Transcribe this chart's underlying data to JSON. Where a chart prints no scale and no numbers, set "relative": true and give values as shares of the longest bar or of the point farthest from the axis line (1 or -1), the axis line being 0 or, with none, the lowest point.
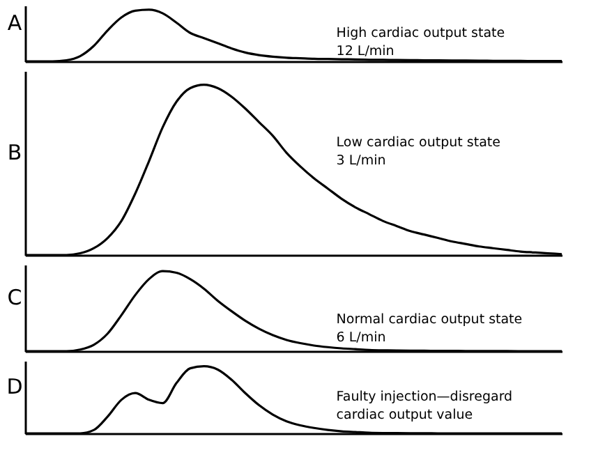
{
  "chart_data": [
    {
      "type": "line",
      "relative": true,
      "tick_labels": false,
      "color": "#000000",
      "ylabel": "A",
      "annotations": [
        "High cardiac output state",
        "12 L/min"
      ],
      "categories": [
        null,
        null,
        null,
        null,
        null,
        null,
        null,
        null,
        null,
        null,
        null,
        null,
        null,
        null,
        null,
        null,
        null,
        null,
        null,
        null,
        null,
        null,
        null,
        null,
        null,
        null,
        null,
        null,
        null,
        null,
        null,
        null,
        null,
        null,
        null,
        null,
        null,
        null,
        null,
        null
      ],
      "values": [
        0,
        0,
        0,
        0.02,
        0.1,
        0.3,
        0.6,
        0.85,
        0.98,
        1.0,
        0.93,
        0.75,
        0.55,
        0.45,
        0.35,
        0.25,
        0.17,
        0.12,
        0.09,
        0.07,
        0.06,
        0.05,
        0.045,
        0.04,
        0.035,
        0.03,
        0.028,
        0.025,
        0.022,
        0.02,
        0.018,
        0.016,
        0.014,
        0.012,
        0.01,
        0.01,
        0.008,
        0.006,
        0.005,
        0.004
      ]
    },
    {
      "type": "line",
      "relative": true,
      "tick_labels": false,
      "color": "#000000",
      "ylabel": "B",
      "annotations": [
        "Low cardiac output state",
        "3 L/min"
      ],
      "categories": [
        null,
        null,
        null,
        null,
        null,
        null,
        null,
        null,
        null,
        null,
        null,
        null,
        null,
        null,
        null,
        null,
        null,
        null,
        null,
        null,
        null,
        null,
        null,
        null,
        null,
        null,
        null,
        null,
        null,
        null,
        null,
        null,
        null,
        null,
        null,
        null,
        null,
        null,
        null,
        null
      ],
      "values": [
        0,
        0,
        0,
        0,
        0.01,
        0.04,
        0.1,
        0.2,
        0.36,
        0.55,
        0.75,
        0.9,
        0.98,
        1.0,
        0.98,
        0.93,
        0.86,
        0.78,
        0.7,
        0.6,
        0.52,
        0.45,
        0.39,
        0.33,
        0.28,
        0.24,
        0.2,
        0.17,
        0.14,
        0.12,
        0.1,
        0.08,
        0.065,
        0.05,
        0.04,
        0.03,
        0.02,
        0.015,
        0.01,
        0.005
      ]
    },
    {
      "type": "line",
      "relative": true,
      "tick_labels": false,
      "color": "#000000",
      "ylabel": "C",
      "annotations": [
        "Normal cardiac output state",
        "6 L/min"
      ],
      "categories": [
        null,
        null,
        null,
        null,
        null,
        null,
        null,
        null,
        null,
        null,
        null,
        null,
        null,
        null,
        null,
        null,
        null,
        null,
        null,
        null,
        null,
        null,
        null,
        null,
        null,
        null,
        null,
        null,
        null,
        null,
        null,
        null,
        null,
        null,
        null,
        null,
        null,
        null,
        null,
        null
      ],
      "values": [
        0,
        0,
        0,
        0,
        0.02,
        0.08,
        0.22,
        0.45,
        0.7,
        0.9,
        1.0,
        0.98,
        0.9,
        0.78,
        0.63,
        0.5,
        0.38,
        0.28,
        0.2,
        0.14,
        0.1,
        0.07,
        0.05,
        0.035,
        0.025,
        0.015,
        0.01,
        0.008,
        0.006,
        0.005,
        0.004,
        0.003,
        0.002,
        0.002,
        0.001,
        0.001,
        0,
        0,
        0,
        0
      ]
    },
    {
      "type": "line",
      "relative": true,
      "tick_labels": false,
      "color": "#000000",
      "ylabel": "D",
      "annotations": [
        "Faulty injection—disregard",
        "cardiac output value"
      ],
      "categories": [
        null,
        null,
        null,
        null,
        null,
        null,
        null,
        null,
        null,
        null,
        null,
        null,
        null,
        null,
        null,
        null,
        null,
        null,
        null,
        null,
        null,
        null,
        null,
        null,
        null,
        null,
        null,
        null,
        null,
        null,
        null,
        null,
        null,
        null,
        null,
        null,
        null,
        null,
        null,
        null
      ],
      "values": [
        0,
        0,
        0,
        0,
        0,
        0.05,
        0.25,
        0.5,
        0.6,
        0.5,
        0.45,
        0.75,
        0.97,
        1.0,
        0.95,
        0.8,
        0.6,
        0.42,
        0.28,
        0.18,
        0.12,
        0.08,
        0.05,
        0.03,
        0.02,
        0.01,
        0.005,
        0.003,
        0.002,
        0.001,
        0,
        0,
        0,
        0,
        0,
        0,
        0,
        0,
        0,
        0
      ]
    }
  ]
}
